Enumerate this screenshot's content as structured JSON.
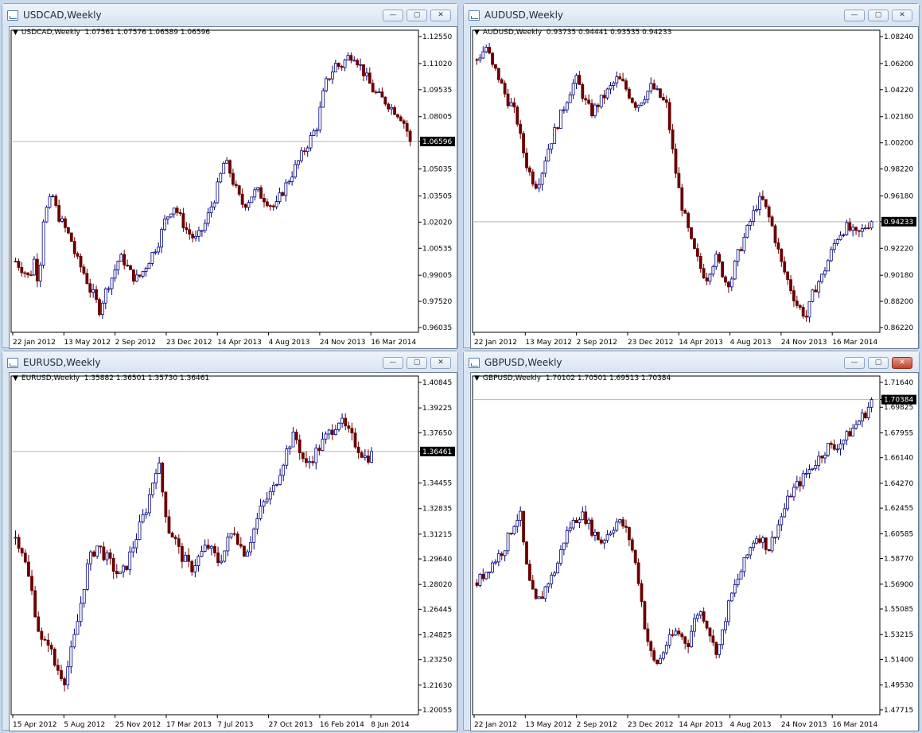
{
  "windows": [
    {
      "id": "usdcad",
      "title": "USDCAD,Weekly",
      "info_symbol": "USDCAD,Weekly",
      "info_ohlc": "1.07561 1.07576 1.06589 1.06596",
      "current_price": "1.06596",
      "buttons": {
        "minimize": "—",
        "maximize": "▢",
        "close": "✕"
      }
    },
    {
      "id": "audusd",
      "title": "AUDUSD,Weekly",
      "info_symbol": "AUDUSD,Weekly",
      "info_ohlc": "0.93735 0.94441 0.93535 0.94233",
      "current_price": "0.94233",
      "buttons": {
        "minimize": "—",
        "maximize": "▢",
        "close": "✕"
      }
    },
    {
      "id": "eurusd",
      "title": "EURUSD,Weekly",
      "info_symbol": "EURUSD,Weekly",
      "info_ohlc": "1.35882 1.36501 1.35730 1.36461",
      "current_price": "1.36461",
      "buttons": {
        "minimize": "—",
        "maximize": "▢",
        "close": "✕"
      }
    },
    {
      "id": "gbpusd",
      "title": "GBPUSD,Weekly",
      "info_symbol": "GBPUSD,Weekly",
      "info_ohlc": "1.70102 1.70501 1.69513 1.70384",
      "current_price": "1.70384",
      "buttons": {
        "minimize": "—",
        "maximize": "▢",
        "close": "✕"
      }
    }
  ],
  "colors": {
    "bull_candle": "#000080",
    "bear_candle": "#6b0000",
    "price_line": "#b4b4b4",
    "axis_text": "#000000",
    "price_label_bg": "#000000",
    "price_label_text": "#ffffff",
    "close_button": "#c2422e"
  },
  "chart_data": [
    {
      "type": "candlestick",
      "title": "USDCAD,Weekly",
      "ylim": [
        0.96035,
        1.1255
      ],
      "yticks": [
        "1.12550",
        "1.11020",
        "1.09535",
        "1.08005",
        "1.06596",
        "1.05035",
        "1.03505",
        "1.02020",
        "1.00535",
        "0.99005",
        "0.97520",
        "0.96035"
      ],
      "xticks": [
        "22 Jan 2012",
        "13 May 2012",
        "2 Sep 2012",
        "23 Dec 2012",
        "14 Apr 2013",
        "4 Aug 2013",
        "24 Nov 2013",
        "16 Mar 2014"
      ],
      "last_price": 1.06596,
      "close_path": [
        0.998,
        0.995,
        0.992,
        0.988,
        0.999,
        0.985,
        1.022,
        1.03,
        1.035,
        1.025,
        1.02,
        1.015,
        1.01,
        1.0,
        0.995,
        0.99,
        0.982,
        0.978,
        0.97,
        0.978,
        0.985,
        0.99,
        0.998,
        1.0,
        0.995,
        0.99,
        0.988,
        0.99,
        0.995,
        1.0,
        1.005,
        1.01,
        1.02,
        1.025,
        1.03,
        1.025,
        1.02,
        1.015,
        1.012,
        1.01,
        1.015,
        1.02,
        1.028,
        1.035,
        1.045,
        1.055,
        1.05,
        1.042,
        1.035,
        1.03,
        1.032,
        1.036,
        1.038,
        1.035,
        1.033,
        1.03,
        1.028,
        1.035,
        1.04,
        1.045,
        1.05,
        1.055,
        1.06,
        1.065,
        1.07,
        1.075,
        1.09,
        1.1,
        1.105,
        1.11,
        1.108,
        1.112,
        1.115,
        1.115,
        1.11,
        1.105,
        1.1,
        1.095,
        1.092,
        1.09,
        1.088,
        1.085,
        1.083,
        1.08,
        1.075,
        1.066
      ],
      "volatility": 0.006
    },
    {
      "type": "candlestick",
      "title": "AUDUSD,Weekly",
      "ylim": [
        0.8622,
        1.0824
      ],
      "yticks": [
        "1.08240",
        "1.06200",
        "1.04220",
        "1.02180",
        "1.00200",
        "0.98220",
        "0.96180",
        "0.94233",
        "0.92220",
        "0.90180",
        "0.88200",
        "0.86220"
      ],
      "xticks": [
        "22 Jan 2012",
        "13 May 2012",
        "2 Sep 2012",
        "23 Dec 2012",
        "14 Apr 2013",
        "4 Aug 2013",
        "24 Nov 2013",
        "16 Mar 2014"
      ],
      "last_price": 0.94233,
      "close_path": [
        1.065,
        1.07,
        1.075,
        1.06,
        1.055,
        1.045,
        1.035,
        1.03,
        1.02,
        1.0,
        0.985,
        0.975,
        0.97,
        0.98,
        0.995,
        1.005,
        1.015,
        1.025,
        1.035,
        1.045,
        1.05,
        1.04,
        1.03,
        1.025,
        1.03,
        1.035,
        1.04,
        1.045,
        1.05,
        1.048,
        1.042,
        1.035,
        1.03,
        1.035,
        1.04,
        1.045,
        1.04,
        1.035,
        1.03,
        1.0,
        0.975,
        0.955,
        0.94,
        0.925,
        0.915,
        0.905,
        0.9,
        0.91,
        0.915,
        0.905,
        0.895,
        0.9,
        0.915,
        0.925,
        0.935,
        0.945,
        0.955,
        0.96,
        0.95,
        0.94,
        0.925,
        0.91,
        0.9,
        0.89,
        0.88,
        0.875,
        0.87,
        0.885,
        0.895,
        0.9,
        0.91,
        0.92,
        0.93,
        0.935,
        0.938,
        0.935,
        0.932,
        0.935,
        0.94,
        0.942
      ],
      "volatility": 0.008
    },
    {
      "type": "candlestick",
      "title": "EURUSD,Weekly",
      "ylim": [
        1.20055,
        1.40845
      ],
      "yticks": [
        "1.40845",
        "1.39225",
        "1.37650",
        "1.36461",
        "1.34455",
        "1.32835",
        "1.31215",
        "1.29640",
        "1.28020",
        "1.26445",
        "1.24825",
        "1.23250",
        "1.21630",
        "1.20055"
      ],
      "xticks": [
        "15 Apr 2012",
        "5 Aug 2012",
        "25 Nov 2012",
        "17 Mar 2013",
        "7 Jul 2013",
        "27 Oct 2013",
        "16 Feb 2014",
        "8 Jun 2014"
      ],
      "last_price": 1.36461,
      "close_path": [
        1.31,
        1.305,
        1.29,
        1.275,
        1.255,
        1.24,
        1.245,
        1.23,
        1.225,
        1.22,
        1.235,
        1.25,
        1.27,
        1.29,
        1.3,
        1.305,
        1.3,
        1.295,
        1.29,
        1.285,
        1.29,
        1.3,
        1.31,
        1.32,
        1.33,
        1.345,
        1.36,
        1.335,
        1.315,
        1.31,
        1.3,
        1.295,
        1.29,
        1.295,
        1.3,
        1.305,
        1.3,
        1.295,
        1.3,
        1.31,
        1.315,
        1.305,
        1.3,
        1.31,
        1.32,
        1.33,
        1.335,
        1.34,
        1.35,
        1.36,
        1.37,
        1.375,
        1.365,
        1.355,
        1.36,
        1.365,
        1.37,
        1.375,
        1.38,
        1.385,
        1.38,
        1.375,
        1.37,
        1.365,
        1.36,
        1.364
      ],
      "volatility": 0.008
    },
    {
      "type": "candlestick",
      "title": "GBPUSD,Weekly",
      "ylim": [
        1.4771,
        1.7164
      ],
      "yticks": [
        "1.71640",
        "1.70384",
        "1.69825",
        "1.67955",
        "1.66140",
        "1.64270",
        "1.62455",
        "1.60585",
        "1.58770",
        "1.56900",
        "1.55085",
        "1.53215",
        "1.51400",
        "1.49530",
        "1.47715"
      ],
      "xticks": [
        "22 Jan 2012",
        "13 May 2012",
        "2 Sep 2012",
        "23 Dec 2012",
        "14 Apr 2013",
        "4 Aug 2013",
        "24 Nov 2013",
        "16 Mar 2014"
      ],
      "last_price": 1.70384,
      "close_path": [
        1.57,
        1.575,
        1.58,
        1.585,
        1.59,
        1.595,
        1.605,
        1.615,
        1.62,
        1.585,
        1.565,
        1.555,
        1.56,
        1.57,
        1.575,
        1.585,
        1.6,
        1.61,
        1.615,
        1.62,
        1.618,
        1.61,
        1.605,
        1.6,
        1.605,
        1.61,
        1.615,
        1.612,
        1.605,
        1.59,
        1.57,
        1.54,
        1.52,
        1.51,
        1.515,
        1.525,
        1.53,
        1.535,
        1.53,
        1.525,
        1.54,
        1.55,
        1.545,
        1.535,
        1.52,
        1.525,
        1.545,
        1.56,
        1.57,
        1.58,
        1.59,
        1.6,
        1.605,
        1.6,
        1.595,
        1.605,
        1.615,
        1.625,
        1.635,
        1.64,
        1.645,
        1.65,
        1.655,
        1.66,
        1.665,
        1.67,
        1.668,
        1.672,
        1.675,
        1.68,
        1.685,
        1.69,
        1.695,
        1.703
      ],
      "volatility": 0.008
    }
  ]
}
